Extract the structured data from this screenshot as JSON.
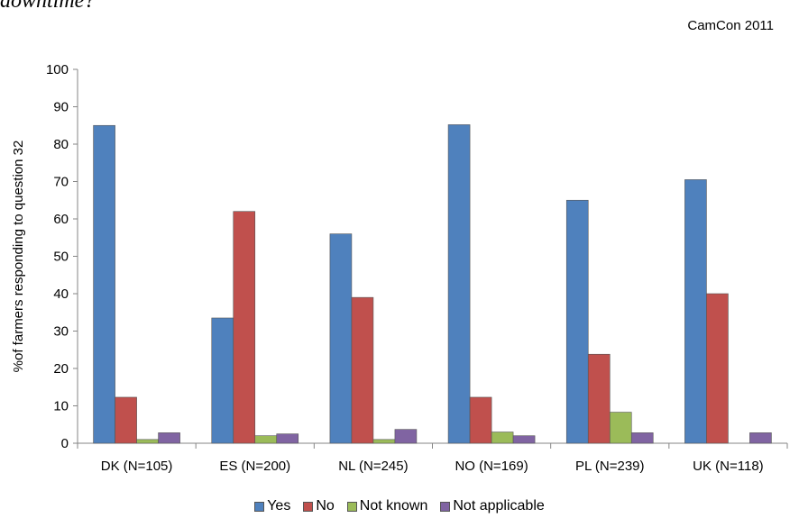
{
  "caption": "downtime?",
  "source": "CamCon 2011",
  "chart_data": {
    "type": "bar",
    "ylabel": "%of farmers responding to question 32",
    "ylim": [
      0,
      100
    ],
    "yticks": [
      0,
      10,
      20,
      30,
      40,
      50,
      60,
      70,
      80,
      90,
      100
    ],
    "categories": [
      "DK (N=105)",
      "ES (N=200)",
      "NL (N=245)",
      "NO (N=169)",
      "PL (N=239)",
      "UK (N=118)"
    ],
    "series": [
      {
        "name": "Yes",
        "color": "#4F81BD",
        "values": [
          85,
          33.5,
          56,
          85.2,
          65,
          70.5
        ]
      },
      {
        "name": "No",
        "color": "#C0504D",
        "values": [
          12.3,
          62,
          39,
          12.3,
          23.8,
          40
        ]
      },
      {
        "name": "Not known",
        "color": "#9BBB59",
        "values": [
          1,
          2,
          1,
          3,
          8.3,
          0
        ]
      },
      {
        "name": "Not applicable",
        "color": "#8064A2",
        "values": [
          2.8,
          2.5,
          3.7,
          2,
          2.8,
          2.8
        ]
      }
    ],
    "grid": false,
    "legend": "bottom"
  }
}
